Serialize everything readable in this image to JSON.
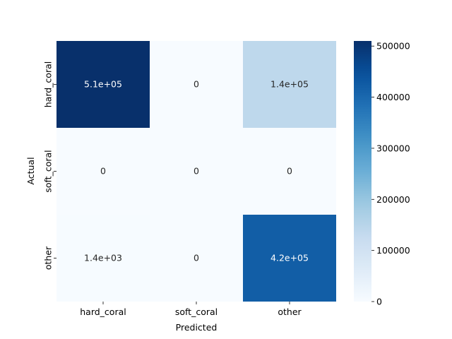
{
  "chart_data": {
    "type": "heatmap",
    "title": "",
    "xlabel": "Predicted",
    "ylabel": "Actual",
    "x_categories": [
      "hard_coral",
      "soft_coral",
      "other"
    ],
    "y_categories": [
      "hard_coral",
      "soft_coral",
      "other"
    ],
    "values": [
      [
        510000,
        0,
        140000
      ],
      [
        0,
        0,
        0
      ],
      [
        1400,
        0,
        420000
      ]
    ],
    "annotations": [
      [
        "5.1e+05",
        "0",
        "1.4e+05"
      ],
      [
        "0",
        "0",
        "0"
      ],
      [
        "1.4e+03",
        "0",
        "4.2e+05"
      ]
    ],
    "colormap": "Blues",
    "colorbar": {
      "range": [
        0,
        510000
      ],
      "ticks": [
        0,
        100000,
        200000,
        300000,
        400000,
        500000
      ],
      "tick_labels": [
        "0",
        "100000",
        "200000",
        "300000",
        "400000",
        "500000"
      ]
    },
    "colors": {
      "low": "#f7fbff",
      "high": "#08306b"
    }
  }
}
